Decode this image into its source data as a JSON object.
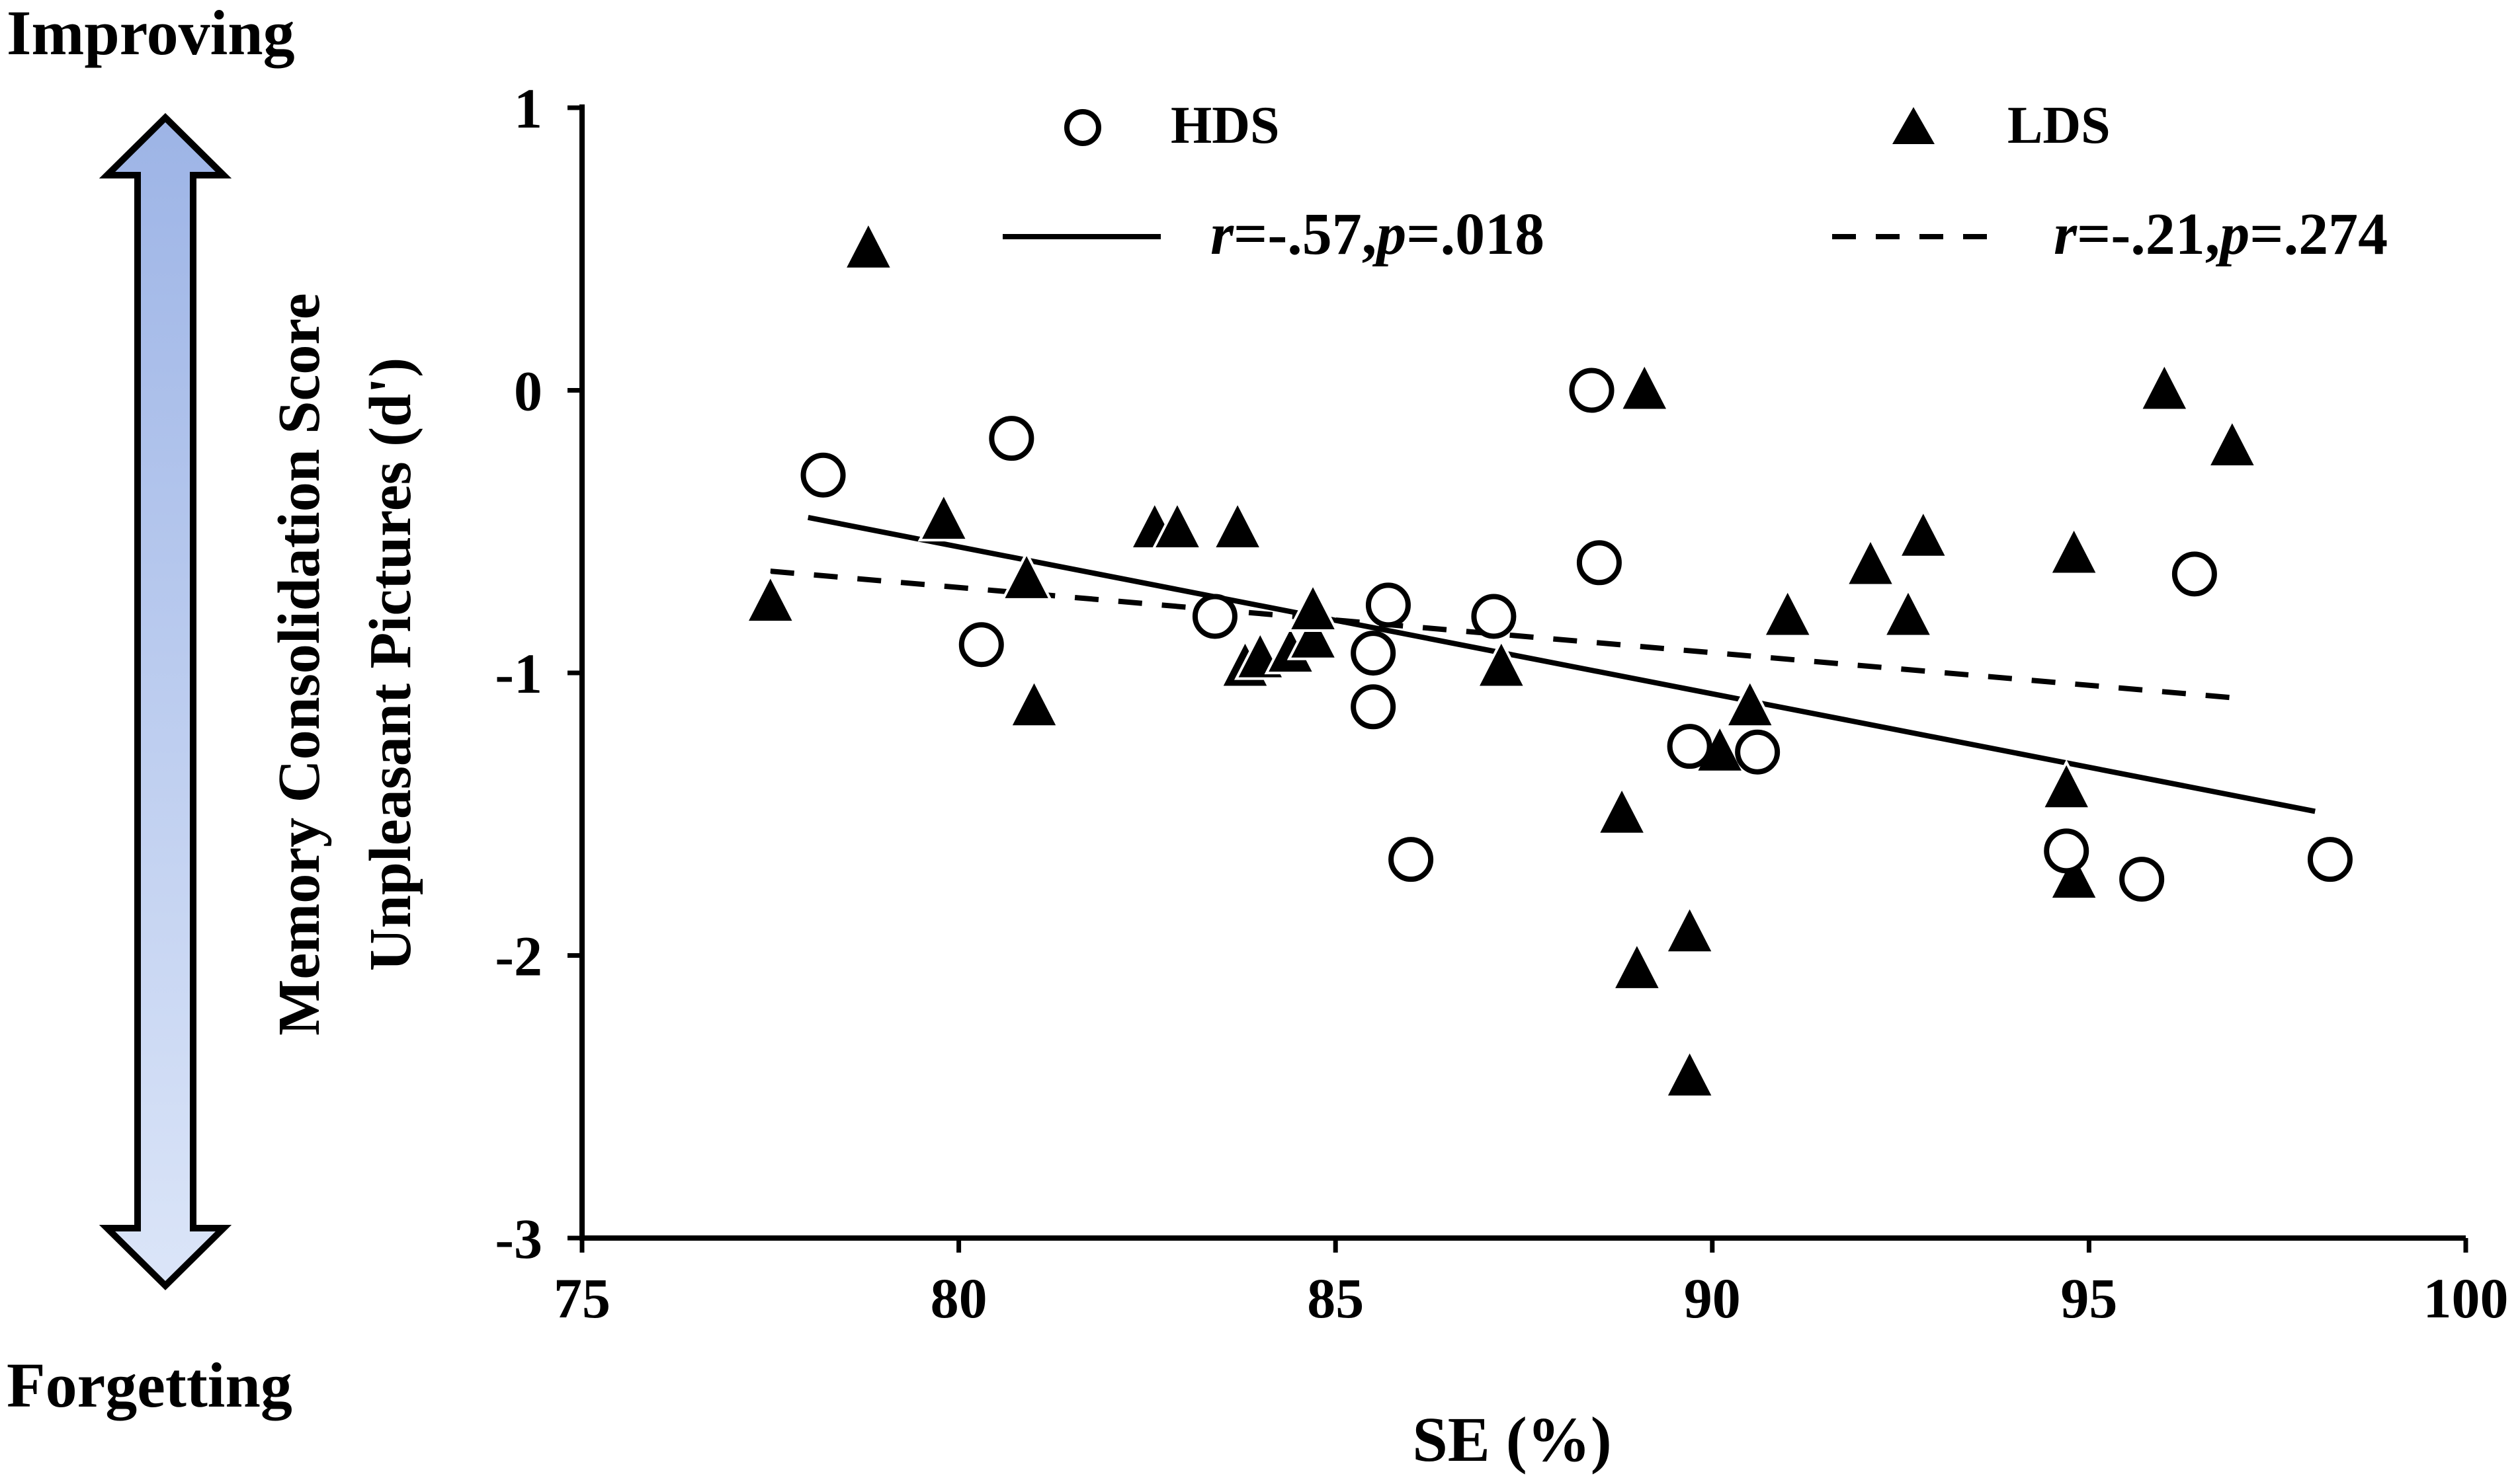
{
  "annotations": {
    "top": "Improving",
    "bottom": "Forgetting"
  },
  "arrow": {
    "gradient_top": "#9db4e6",
    "gradient_bottom": "#dbe5f8",
    "stroke": "#000000"
  },
  "chart_data": {
    "type": "scatter",
    "title": "",
    "xlabel": "SE (%)",
    "ylabel_lines": [
      "Memory Consolidation Score",
      "Unpleasant Pictures (d')"
    ],
    "xlim": [
      75,
      100
    ],
    "ylim": [
      -3,
      1
    ],
    "x_ticks": [
      75,
      80,
      85,
      90,
      95,
      100
    ],
    "y_ticks": [
      1,
      0,
      -1,
      -2,
      -3
    ],
    "grid": false,
    "legend_position": "top",
    "series": [
      {
        "name": "HDS",
        "marker": "circle-open",
        "fit_line_style": "solid",
        "fit_label_parts": [
          "r",
          "=-.57,",
          "p",
          "=.018"
        ],
        "fit_line": {
          "x": [
            78.0,
            98.0
          ],
          "y": [
            -0.45,
            -1.49
          ]
        },
        "points": [
          [
            78.2,
            -0.3
          ],
          [
            80.3,
            -0.9
          ],
          [
            80.7,
            -0.17
          ],
          [
            83.4,
            -0.8
          ],
          [
            85.5,
            -0.93
          ],
          [
            85.5,
            -1.12
          ],
          [
            85.7,
            -0.76
          ],
          [
            86.0,
            -1.66
          ],
          [
            87.1,
            -0.8
          ],
          [
            88.4,
            0.0
          ],
          [
            88.5,
            -0.61
          ],
          [
            89.7,
            -1.26
          ],
          [
            90.6,
            -1.28
          ],
          [
            94.7,
            -1.63
          ],
          [
            95.7,
            -1.73
          ],
          [
            96.4,
            -0.65
          ],
          [
            98.2,
            -1.66
          ]
        ]
      },
      {
        "name": "LDS",
        "marker": "triangle-filled",
        "fit_line_style": "dashed",
        "fit_label_parts": [
          "r",
          "=-.21,",
          "p",
          "=.274"
        ],
        "fit_line": {
          "x": [
            77.5,
            97.0
          ],
          "y": [
            -0.64,
            -1.09
          ]
        },
        "points": [
          [
            77.5,
            -0.75
          ],
          [
            78.8,
            0.5
          ],
          [
            79.8,
            -0.46
          ],
          [
            80.9,
            -0.67
          ],
          [
            81.0,
            -1.12
          ],
          [
            82.6,
            -0.49
          ],
          [
            82.9,
            -0.49
          ],
          [
            83.7,
            -0.49
          ],
          [
            83.8,
            -0.98
          ],
          [
            84.0,
            -0.95
          ],
          [
            84.4,
            -0.93
          ],
          [
            84.7,
            -0.88
          ],
          [
            84.7,
            -0.78
          ],
          [
            87.2,
            -0.98
          ],
          [
            88.8,
            -1.5
          ],
          [
            89.0,
            -2.05
          ],
          [
            89.1,
            0.0
          ],
          [
            89.7,
            -1.92
          ],
          [
            89.7,
            -2.43
          ],
          [
            90.1,
            -1.28
          ],
          [
            90.5,
            -1.12
          ],
          [
            91.0,
            -0.8
          ],
          [
            92.1,
            -0.62
          ],
          [
            92.6,
            -0.8
          ],
          [
            92.8,
            -0.52
          ],
          [
            94.7,
            -1.41
          ],
          [
            94.8,
            -1.73
          ],
          [
            94.8,
            -0.58
          ],
          [
            96.0,
            0.0
          ],
          [
            96.9,
            -0.2
          ]
        ]
      }
    ]
  }
}
